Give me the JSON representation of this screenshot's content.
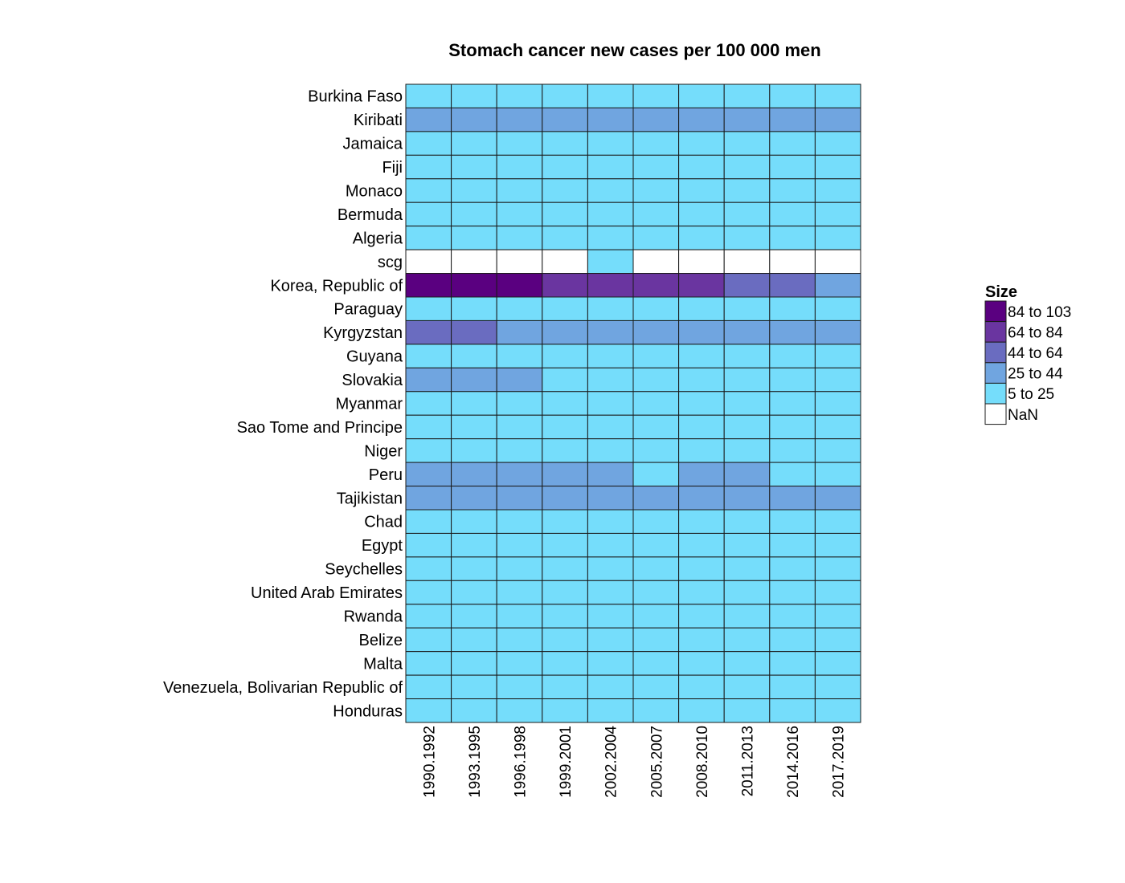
{
  "chart_data": {
    "type": "heatmap",
    "title": "Stomach cancer new cases per 100 000 men",
    "columns": [
      "1990.1992",
      "1993.1995",
      "1996.1998",
      "1999.2001",
      "2002.2004",
      "2005.2007",
      "2008.2010",
      "2011.2013",
      "2014.2016",
      "2017.2019"
    ],
    "rows": [
      "Burkina Faso",
      "Kiribati",
      "Jamaica",
      "Fiji",
      "Monaco",
      "Bermuda",
      "Algeria",
      "scg",
      "Korea, Republic of",
      "Paraguay",
      "Kyrgyzstan",
      "Guyana",
      "Slovakia",
      "Myanmar",
      "Sao Tome and Principe",
      "Niger",
      "Peru",
      "Tajikistan",
      "Chad",
      "Egypt",
      "Seychelles",
      "United Arab Emirates",
      "Rwanda",
      "Belize",
      "Malta",
      "Venezuela, Bolivarian Republic of",
      "Honduras"
    ],
    "bins": [
      {
        "label": "84 to 103",
        "color": "#5a0080"
      },
      {
        "label": "64 to 84",
        "color": "#6a35a0"
      },
      {
        "label": "44 to 64",
        "color": "#6a6cc0"
      },
      {
        "label": "25 to 44",
        "color": "#70a5e0"
      },
      {
        "label": "5 to 25",
        "color": "#75ddfb"
      },
      {
        "label": "NaN",
        "color": "#ffffff"
      }
    ],
    "bin_index_matrix": [
      [
        4,
        4,
        4,
        4,
        4,
        4,
        4,
        4,
        4,
        4
      ],
      [
        3,
        3,
        3,
        3,
        3,
        3,
        3,
        3,
        3,
        3
      ],
      [
        4,
        4,
        4,
        4,
        4,
        4,
        4,
        4,
        4,
        4
      ],
      [
        4,
        4,
        4,
        4,
        4,
        4,
        4,
        4,
        4,
        4
      ],
      [
        4,
        4,
        4,
        4,
        4,
        4,
        4,
        4,
        4,
        4
      ],
      [
        4,
        4,
        4,
        4,
        4,
        4,
        4,
        4,
        4,
        4
      ],
      [
        4,
        4,
        4,
        4,
        4,
        4,
        4,
        4,
        4,
        4
      ],
      [
        5,
        5,
        5,
        5,
        4,
        5,
        5,
        5,
        5,
        5
      ],
      [
        0,
        0,
        0,
        1,
        1,
        1,
        1,
        2,
        2,
        3
      ],
      [
        4,
        4,
        4,
        4,
        4,
        4,
        4,
        4,
        4,
        4
      ],
      [
        2,
        2,
        3,
        3,
        3,
        3,
        3,
        3,
        3,
        3
      ],
      [
        4,
        4,
        4,
        4,
        4,
        4,
        4,
        4,
        4,
        4
      ],
      [
        3,
        3,
        3,
        4,
        4,
        4,
        4,
        4,
        4,
        4
      ],
      [
        4,
        4,
        4,
        4,
        4,
        4,
        4,
        4,
        4,
        4
      ],
      [
        4,
        4,
        4,
        4,
        4,
        4,
        4,
        4,
        4,
        4
      ],
      [
        4,
        4,
        4,
        4,
        4,
        4,
        4,
        4,
        4,
        4
      ],
      [
        3,
        3,
        3,
        3,
        3,
        4,
        3,
        3,
        4,
        4
      ],
      [
        3,
        3,
        3,
        3,
        3,
        3,
        3,
        3,
        3,
        3
      ],
      [
        4,
        4,
        4,
        4,
        4,
        4,
        4,
        4,
        4,
        4
      ],
      [
        4,
        4,
        4,
        4,
        4,
        4,
        4,
        4,
        4,
        4
      ],
      [
        4,
        4,
        4,
        4,
        4,
        4,
        4,
        4,
        4,
        4
      ],
      [
        4,
        4,
        4,
        4,
        4,
        4,
        4,
        4,
        4,
        4
      ],
      [
        4,
        4,
        4,
        4,
        4,
        4,
        4,
        4,
        4,
        4
      ],
      [
        4,
        4,
        4,
        4,
        4,
        4,
        4,
        4,
        4,
        4
      ],
      [
        4,
        4,
        4,
        4,
        4,
        4,
        4,
        4,
        4,
        4
      ],
      [
        4,
        4,
        4,
        4,
        4,
        4,
        4,
        4,
        4,
        4
      ],
      [
        4,
        4,
        4,
        4,
        4,
        4,
        4,
        4,
        4,
        4
      ]
    ],
    "legend": {
      "title": "Size",
      "placement": "right"
    },
    "grid": true
  }
}
